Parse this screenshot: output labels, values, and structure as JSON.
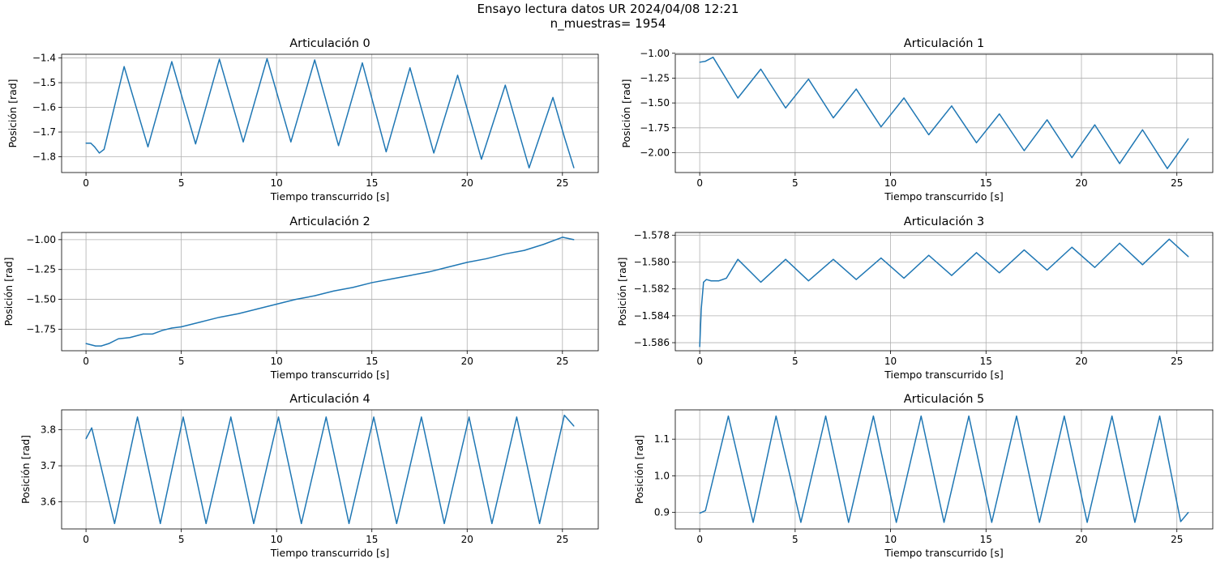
{
  "figure": {
    "suptitle_line1": "Ensayo lectura datos UR 2024/04/08 12:21",
    "suptitle_line2": "n_muestras= 1954"
  },
  "colors": {
    "line": "#1f77b4",
    "grid": "#b0b0b0",
    "axes": "#000000"
  },
  "chart_data": [
    {
      "type": "line",
      "title": "Articulación 0",
      "xlabel": "Tiempo transcurrido [s]",
      "ylabel": "Posición [rad]",
      "xlim": [
        -1.28,
        26.88
      ],
      "ylim": [
        -1.864,
        -1.385
      ],
      "xticks": [
        0,
        5,
        10,
        15,
        20,
        25
      ],
      "xtick_labels": [
        "0",
        "5",
        "10",
        "15",
        "20",
        "25"
      ],
      "yticks": [
        -1.8,
        -1.7,
        -1.6,
        -1.5,
        -1.4
      ],
      "ytick_labels": [
        "−1.8",
        "−1.7",
        "−1.6",
        "−1.5",
        "−1.4"
      ],
      "grid": true,
      "series": [
        {
          "x": [
            0,
            0.25,
            0.45,
            0.7,
            0.95,
            2.0,
            3.25,
            4.5,
            5.75,
            7.0,
            8.25,
            9.5,
            10.75,
            12.0,
            13.25,
            14.5,
            15.75,
            17.0,
            18.25,
            19.5,
            20.75,
            22.0,
            23.25,
            24.5,
            25.1,
            25.6
          ],
          "y": [
            -1.745,
            -1.745,
            -1.76,
            -1.785,
            -1.77,
            -1.435,
            -1.76,
            -1.415,
            -1.748,
            -1.405,
            -1.74,
            -1.403,
            -1.74,
            -1.408,
            -1.755,
            -1.42,
            -1.78,
            -1.44,
            -1.785,
            -1.47,
            -1.81,
            -1.51,
            -1.845,
            -1.56,
            -1.72,
            -1.845
          ]
        }
      ]
    },
    {
      "type": "line",
      "title": "Articulación 1",
      "xlabel": "Tiempo transcurrido [s]",
      "ylabel": "Posición [rad]",
      "xlim": [
        -1.28,
        26.88
      ],
      "ylim": [
        -2.2,
        -1.01
      ],
      "xticks": [
        0,
        5,
        10,
        15,
        20,
        25
      ],
      "xtick_labels": [
        "0",
        "5",
        "10",
        "15",
        "20",
        "25"
      ],
      "yticks": [
        -2.0,
        -1.75,
        -1.5,
        -1.25,
        -1.0
      ],
      "ytick_labels": [
        "−2.00",
        "−1.75",
        "−1.50",
        "−1.25",
        "−1.00"
      ],
      "grid": true,
      "series": [
        {
          "x": [
            0,
            0.3,
            0.7,
            2.0,
            3.2,
            4.5,
            5.7,
            7.0,
            8.2,
            9.5,
            10.7,
            12.0,
            13.2,
            14.5,
            15.7,
            17.0,
            18.2,
            19.5,
            20.7,
            22.0,
            23.2,
            24.5,
            25.6
          ],
          "y": [
            -1.09,
            -1.08,
            -1.04,
            -1.45,
            -1.16,
            -1.55,
            -1.26,
            -1.65,
            -1.36,
            -1.74,
            -1.45,
            -1.82,
            -1.53,
            -1.9,
            -1.61,
            -1.98,
            -1.67,
            -2.05,
            -1.72,
            -2.11,
            -1.77,
            -2.16,
            -1.86
          ]
        }
      ]
    },
    {
      "type": "line",
      "title": "Articulación 2",
      "xlabel": "Tiempo transcurrido [s]",
      "ylabel": "Posición [rad]",
      "xlim": [
        -1.28,
        26.88
      ],
      "ylim": [
        -1.93,
        -0.94
      ],
      "xticks": [
        0,
        5,
        10,
        15,
        20,
        25
      ],
      "xtick_labels": [
        "0",
        "5",
        "10",
        "15",
        "20",
        "25"
      ],
      "yticks": [
        -1.75,
        -1.5,
        -1.25,
        -1.0
      ],
      "ytick_labels": [
        "−1.75",
        "−1.50",
        "−1.25",
        "−1.00"
      ],
      "grid": true,
      "series": [
        {
          "x": [
            0,
            0.5,
            0.8,
            1.2,
            1.7,
            2.3,
            3.0,
            3.5,
            4.0,
            4.5,
            5.0,
            6.0,
            7.0,
            8.0,
            9.0,
            10.0,
            11.0,
            12.0,
            13.0,
            14.0,
            15.0,
            16.0,
            17.0,
            18.0,
            19.0,
            20.0,
            21.0,
            22.0,
            23.0,
            24.0,
            25.0,
            25.6
          ],
          "y": [
            -1.87,
            -1.89,
            -1.89,
            -1.87,
            -1.83,
            -1.82,
            -1.79,
            -1.79,
            -1.76,
            -1.74,
            -1.73,
            -1.69,
            -1.65,
            -1.62,
            -1.58,
            -1.54,
            -1.5,
            -1.47,
            -1.43,
            -1.4,
            -1.36,
            -1.33,
            -1.3,
            -1.27,
            -1.23,
            -1.19,
            -1.16,
            -1.12,
            -1.09,
            -1.04,
            -0.98,
            -1.0
          ]
        }
      ]
    },
    {
      "type": "line",
      "title": "Articulación 3",
      "xlabel": "Tiempo transcurrido [s]",
      "ylabel": "Posición [rad]",
      "xlim": [
        -1.28,
        26.88
      ],
      "ylim": [
        -1.5866,
        -1.5778
      ],
      "xticks": [
        0,
        5,
        10,
        15,
        20,
        25
      ],
      "xtick_labels": [
        "0",
        "5",
        "10",
        "15",
        "20",
        "25"
      ],
      "yticks": [
        -1.586,
        -1.584,
        -1.582,
        -1.58,
        -1.578
      ],
      "ytick_labels": [
        "−1.586",
        "−1.584",
        "−1.582",
        "−1.580",
        "−1.578"
      ],
      "grid": true,
      "series": [
        {
          "x": [
            0,
            0.08,
            0.2,
            0.35,
            0.6,
            1.0,
            1.4,
            2.0,
            3.2,
            4.5,
            5.7,
            7.0,
            8.2,
            9.5,
            10.7,
            12.0,
            13.2,
            14.5,
            15.7,
            17.0,
            18.2,
            19.5,
            20.7,
            22.0,
            23.2,
            24.6,
            25.6
          ],
          "y": [
            -1.5863,
            -1.5835,
            -1.5815,
            -1.5813,
            -1.5814,
            -1.5814,
            -1.5812,
            -1.5798,
            -1.5815,
            -1.5798,
            -1.5814,
            -1.5798,
            -1.5813,
            -1.5797,
            -1.5812,
            -1.5795,
            -1.581,
            -1.5793,
            -1.5808,
            -1.5791,
            -1.5806,
            -1.5789,
            -1.5804,
            -1.5786,
            -1.5802,
            -1.5783,
            -1.5796
          ]
        }
      ]
    },
    {
      "type": "line",
      "title": "Articulación 4",
      "xlabel": "Tiempo transcurrido [s]",
      "ylabel": "Posición [rad]",
      "xlim": [
        -1.28,
        26.88
      ],
      "ylim": [
        3.525,
        3.855
      ],
      "xticks": [
        0,
        5,
        10,
        15,
        20,
        25
      ],
      "xtick_labels": [
        "0",
        "5",
        "10",
        "15",
        "20",
        "25"
      ],
      "yticks": [
        3.6,
        3.7,
        3.8
      ],
      "ytick_labels": [
        "3.6",
        "3.7",
        "3.8"
      ],
      "grid": true,
      "series": [
        {
          "x": [
            0,
            0.3,
            1.5,
            2.7,
            3.9,
            5.1,
            6.3,
            7.6,
            8.8,
            10.1,
            11.3,
            12.6,
            13.8,
            15.1,
            16.3,
            17.6,
            18.8,
            20.1,
            21.3,
            22.6,
            23.8,
            25.1,
            25.6
          ],
          "y": [
            3.775,
            3.805,
            3.54,
            3.835,
            3.54,
            3.835,
            3.54,
            3.835,
            3.54,
            3.835,
            3.54,
            3.835,
            3.54,
            3.835,
            3.54,
            3.835,
            3.54,
            3.835,
            3.54,
            3.835,
            3.54,
            3.84,
            3.81
          ]
        }
      ]
    },
    {
      "type": "line",
      "title": "Articulación 5",
      "xlabel": "Tiempo transcurrido [s]",
      "ylabel": "Posición [rad]",
      "xlim": [
        -1.28,
        26.88
      ],
      "ylim": [
        0.855,
        1.18
      ],
      "xticks": [
        0,
        5,
        10,
        15,
        20,
        25
      ],
      "xtick_labels": [
        "0",
        "5",
        "10",
        "15",
        "20",
        "25"
      ],
      "yticks": [
        0.9,
        1.0,
        1.1
      ],
      "ytick_labels": [
        "0.9",
        "1.0",
        "1.1"
      ],
      "grid": true,
      "series": [
        {
          "x": [
            0,
            0.3,
            1.5,
            2.8,
            4.0,
            5.3,
            6.6,
            7.8,
            9.1,
            10.3,
            11.6,
            12.8,
            14.1,
            15.3,
            16.6,
            17.8,
            19.1,
            20.3,
            21.6,
            22.8,
            24.1,
            25.2,
            25.6
          ],
          "y": [
            0.898,
            0.905,
            1.163,
            0.873,
            1.163,
            0.873,
            1.163,
            0.873,
            1.163,
            0.873,
            1.163,
            0.873,
            1.163,
            0.873,
            1.163,
            0.873,
            1.163,
            0.873,
            1.163,
            0.873,
            1.163,
            0.875,
            0.9
          ]
        }
      ]
    }
  ]
}
